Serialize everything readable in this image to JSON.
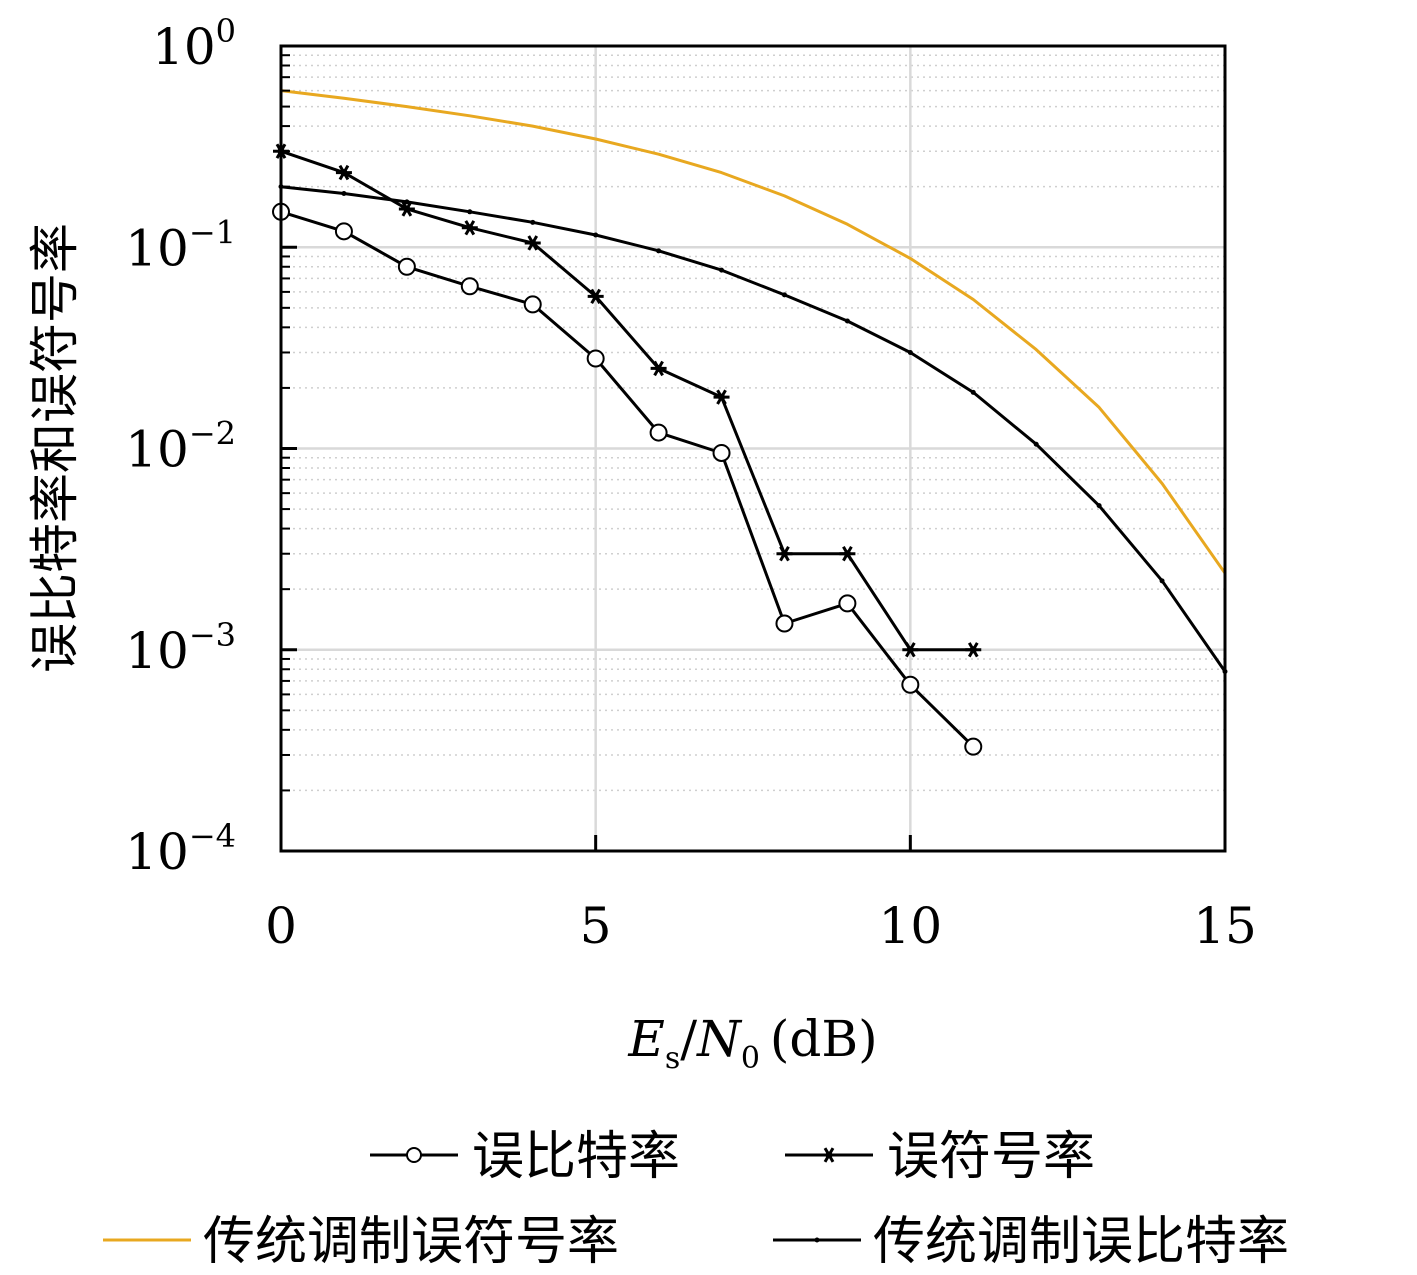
{
  "chart_data": {
    "type": "line",
    "xlabel": "Es/N0 (dB)",
    "xlabel_parts": {
      "var_main": "E",
      "var_sub": "s",
      "slash": "/",
      "var2_main": "N",
      "var2_sub": "0",
      "unit": "(dB)"
    },
    "ylabel": "误比特率和误符号率",
    "y_scale": "log",
    "xlim": [
      0,
      15
    ],
    "ylim": [
      0.0001,
      1
    ],
    "x_ticks": [
      0,
      5,
      10,
      15
    ],
    "x_tick_labels": [
      "0",
      "5",
      "10",
      "15"
    ],
    "y_ticks": [
      1,
      0.1,
      0.01,
      0.001,
      0.0001
    ],
    "y_tick_labels": [
      {
        "base": "10",
        "exp": "0"
      },
      {
        "base": "10",
        "exp": "−1"
      },
      {
        "base": "10",
        "exp": "−2"
      },
      {
        "base": "10",
        "exp": "−3"
      },
      {
        "base": "10",
        "exp": "−4"
      }
    ],
    "grid": true,
    "legend_position": "bottom",
    "series": [
      {
        "name": "误比特率",
        "color": "#000000",
        "marker": "circle",
        "x": [
          0,
          1,
          2,
          3,
          4,
          5,
          6,
          7,
          8,
          9,
          10,
          11
        ],
        "y": [
          0.15,
          0.12,
          0.08,
          0.064,
          0.052,
          0.028,
          0.012,
          0.0095,
          0.00135,
          0.0017,
          0.00067,
          0.00033
        ]
      },
      {
        "name": "误符号率",
        "color": "#000000",
        "marker": "asterisk",
        "x": [
          0,
          1,
          2,
          3,
          4,
          5,
          6,
          7,
          8,
          9,
          10,
          11
        ],
        "y": [
          0.3,
          0.235,
          0.155,
          0.125,
          0.105,
          0.057,
          0.025,
          0.018,
          0.003,
          0.003,
          0.001,
          0.001
        ]
      },
      {
        "name": "传统调制误符号率",
        "color": "#E8A820",
        "marker": "none",
        "x": [
          0,
          1,
          2,
          3,
          4,
          5,
          6,
          7,
          8,
          9,
          10,
          11,
          12,
          13,
          14,
          15
        ],
        "y": [
          0.6,
          0.55,
          0.5,
          0.45,
          0.4,
          0.345,
          0.29,
          0.235,
          0.18,
          0.13,
          0.088,
          0.055,
          0.031,
          0.016,
          0.0067,
          0.0024
        ]
      },
      {
        "name": "传统调制误比特率",
        "color": "#000000",
        "marker": "dot",
        "x": [
          0,
          1,
          2,
          3,
          4,
          5,
          6,
          7,
          8,
          9,
          10,
          11,
          12,
          13,
          14,
          15
        ],
        "y": [
          0.2,
          0.185,
          0.168,
          0.15,
          0.133,
          0.115,
          0.096,
          0.077,
          0.058,
          0.043,
          0.03,
          0.019,
          0.0105,
          0.0052,
          0.0022,
          0.00078
        ]
      }
    ]
  }
}
